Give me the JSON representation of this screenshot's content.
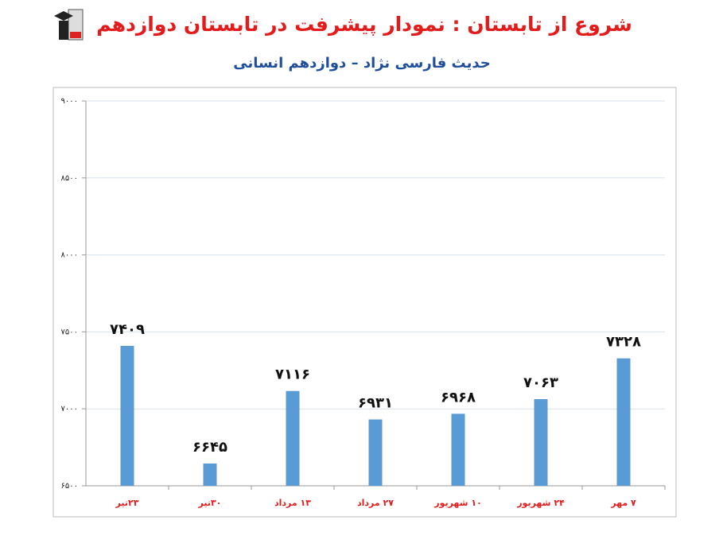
{
  "chart_data": {
    "type": "bar",
    "title": "شروع از تابستان : نمودار پیشرفت در تابستان دوازدهم",
    "subtitle": "حدیث فارسی نژاد – دوازدهم انسانی",
    "categories": [
      "۲۳تیر",
      "۳۰تیر",
      "۱۳ مرداد",
      "۲۷ مرداد",
      "۱۰ شهریور",
      "۲۴ شهریور",
      "۷ مهر"
    ],
    "values": [
      7409,
      6645,
      7116,
      6931,
      6968,
      7063,
      7328
    ],
    "value_labels": [
      "۷۴۰۹",
      "۶۶۴۵",
      "۷۱۱۶",
      "۶۹۳۱",
      "۶۹۶۸",
      "۷۰۶۳",
      "۷۳۲۸"
    ],
    "color": "#5b9bd5",
    "ylim": [
      6500,
      9000
    ],
    "yticks": [
      {
        "value": 6500,
        "label": "۶۵۰۰"
      },
      {
        "value": 7000,
        "label": "۷۰۰۰"
      },
      {
        "value": 7500,
        "label": "۷۵۰۰"
      },
      {
        "value": 8000,
        "label": "۸۰۰۰"
      },
      {
        "value": 8500,
        "label": "۸۵۰۰"
      },
      {
        "value": 9000,
        "label": "۹۰۰۰"
      }
    ],
    "grid": true
  }
}
